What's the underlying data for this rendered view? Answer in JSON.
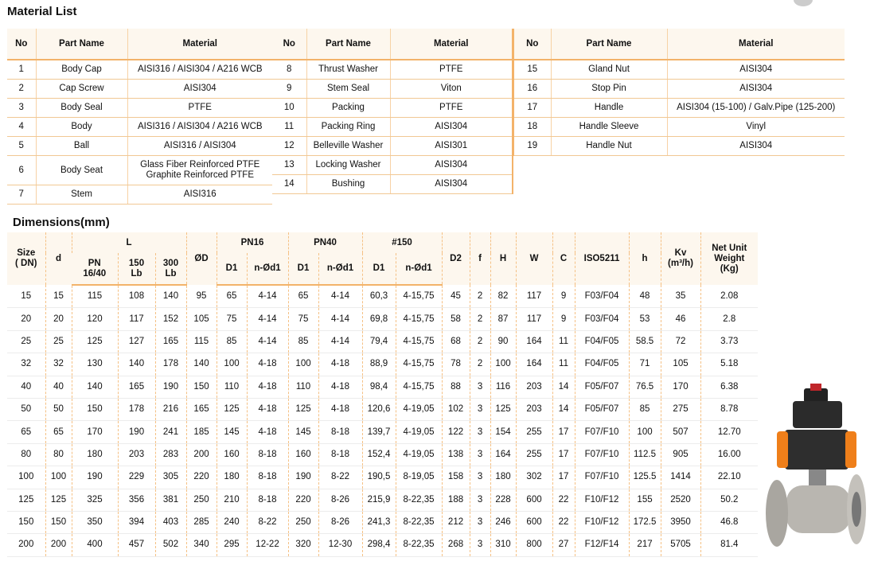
{
  "material_list": {
    "title": "Material List",
    "tables": [
      {
        "columns": [
          "No",
          "Part Name",
          "Material"
        ],
        "rows": [
          [
            "1",
            "Body Cap",
            "AISI316 / AISI304 / A216 WCB"
          ],
          [
            "2",
            "Cap Screw",
            "AISI304"
          ],
          [
            "3",
            "Body Seal",
            "PTFE"
          ],
          [
            "4",
            "Body",
            "AISI316 / AISI304 / A216 WCB"
          ],
          [
            "5",
            "Ball",
            "AISI316 / AISI304"
          ],
          [
            "6",
            "Body Seat",
            [
              "Glass Fiber Reinforced PTFE",
              "Graphite Reinforced PTFE"
            ]
          ],
          [
            "7",
            "Stem",
            "AISI316"
          ]
        ]
      },
      {
        "columns": [
          "No",
          "Part Name",
          "Material"
        ],
        "rows": [
          [
            "8",
            "Thrust Washer",
            "PTFE"
          ],
          [
            "9",
            "Stem Seal",
            "Viton"
          ],
          [
            "10",
            "Packing",
            "PTFE"
          ],
          [
            "11",
            "Packing Ring",
            "AISI304"
          ],
          [
            "12",
            "Belleville Washer",
            "AISI301"
          ],
          [
            "13",
            "Locking Washer",
            "AISI304"
          ],
          [
            "14",
            "Bushing",
            "AISI304"
          ]
        ]
      },
      {
        "columns": [
          "No",
          "Part Name",
          "Material"
        ],
        "rows": [
          [
            "15",
            "Gland Nut",
            "AISI304"
          ],
          [
            "16",
            "Stop Pin",
            "AISI304"
          ],
          [
            "17",
            "Handle",
            "AISI304 (15-100) / Galv.Pipe (125-200)"
          ],
          [
            "18",
            "Handle Sleeve",
            "Vinyl"
          ],
          [
            "19",
            "Handle Nut",
            "AISI304"
          ]
        ]
      }
    ]
  },
  "dimensions": {
    "title": "Dimensions(mm)",
    "header": [
      {
        "label": [
          "Size",
          "( DN)"
        ]
      },
      {
        "label": "d"
      },
      {
        "label": "L",
        "sub": [
          [
            "PN",
            "16/40"
          ],
          [
            "150",
            "Lb"
          ],
          [
            "300",
            "Lb"
          ]
        ]
      },
      {
        "label": "ØD"
      },
      {
        "label": "PN16",
        "sub": [
          "D1",
          "n-Ød1"
        ]
      },
      {
        "label": "PN40",
        "sub": [
          "D1",
          "n-Ød1"
        ]
      },
      {
        "label": "#150",
        "sub": [
          "D1",
          "n-Ød1"
        ]
      },
      {
        "label": "D2"
      },
      {
        "label": "f"
      },
      {
        "label": "H"
      },
      {
        "label": "W"
      },
      {
        "label": "C"
      },
      {
        "label": "ISO5211"
      },
      {
        "label": "h"
      },
      {
        "label": [
          "Kv",
          "(m³/h)"
        ]
      },
      {
        "label": [
          "Net Unit",
          "Weight",
          "(Kg)"
        ]
      }
    ],
    "rows": [
      [
        "15",
        "15",
        "115",
        "108",
        "140",
        "95",
        "65",
        "4-14",
        "65",
        "4-14",
        "60,3",
        "4-15,75",
        "45",
        "2",
        "82",
        "117",
        "9",
        "F03/F04",
        "48",
        "35",
        "2.08"
      ],
      [
        "20",
        "20",
        "120",
        "117",
        "152",
        "105",
        "75",
        "4-14",
        "75",
        "4-14",
        "69,8",
        "4-15,75",
        "58",
        "2",
        "87",
        "117",
        "9",
        "F03/F04",
        "53",
        "46",
        "2.8"
      ],
      [
        "25",
        "25",
        "125",
        "127",
        "165",
        "115",
        "85",
        "4-14",
        "85",
        "4-14",
        "79,4",
        "4-15,75",
        "68",
        "2",
        "90",
        "164",
        "11",
        "F04/F05",
        "58.5",
        "72",
        "3.73"
      ],
      [
        "32",
        "32",
        "130",
        "140",
        "178",
        "140",
        "100",
        "4-18",
        "100",
        "4-18",
        "88,9",
        "4-15,75",
        "78",
        "2",
        "100",
        "164",
        "11",
        "F04/F05",
        "71",
        "105",
        "5.18"
      ],
      [
        "40",
        "40",
        "140",
        "165",
        "190",
        "150",
        "110",
        "4-18",
        "110",
        "4-18",
        "98,4",
        "4-15,75",
        "88",
        "3",
        "116",
        "203",
        "14",
        "F05/F07",
        "76.5",
        "170",
        "6.38"
      ],
      [
        "50",
        "50",
        "150",
        "178",
        "216",
        "165",
        "125",
        "4-18",
        "125",
        "4-18",
        "120,6",
        "4-19,05",
        "102",
        "3",
        "125",
        "203",
        "14",
        "F05/F07",
        "85",
        "275",
        "8.78"
      ],
      [
        "65",
        "65",
        "170",
        "190",
        "241",
        "185",
        "145",
        "4-18",
        "145",
        "8-18",
        "139,7",
        "4-19,05",
        "122",
        "3",
        "154",
        "255",
        "17",
        "F07/F10",
        "100",
        "507",
        "12.70"
      ],
      [
        "80",
        "80",
        "180",
        "203",
        "283",
        "200",
        "160",
        "8-18",
        "160",
        "8-18",
        "152,4",
        "4-19,05",
        "138",
        "3",
        "164",
        "255",
        "17",
        "F07/F10",
        "112.5",
        "905",
        "16.00"
      ],
      [
        "100",
        "100",
        "190",
        "229",
        "305",
        "220",
        "180",
        "8-18",
        "190",
        "8-22",
        "190,5",
        "8-19,05",
        "158",
        "3",
        "180",
        "302",
        "17",
        "F07/F10",
        "125.5",
        "1414",
        "22.10"
      ],
      [
        "125",
        "125",
        "325",
        "356",
        "381",
        "250",
        "210",
        "8-18",
        "220",
        "8-26",
        "215,9",
        "8-22,35",
        "188",
        "3",
        "228",
        "600",
        "22",
        "F10/F12",
        "155",
        "2520",
        "50.2"
      ],
      [
        "150",
        "150",
        "350",
        "394",
        "403",
        "285",
        "240",
        "8-22",
        "250",
        "8-26",
        "241,3",
        "8-22,35",
        "212",
        "3",
        "246",
        "600",
        "22",
        "F10/F12",
        "172.5",
        "3950",
        "46.8"
      ],
      [
        "200",
        "200",
        "400",
        "457",
        "502",
        "340",
        "295",
        "12-22",
        "320",
        "12-30",
        "298,4",
        "8-22,35",
        "268",
        "3",
        "310",
        "800",
        "27",
        "F12/F14",
        "217",
        "5705",
        "81.4"
      ]
    ]
  }
}
